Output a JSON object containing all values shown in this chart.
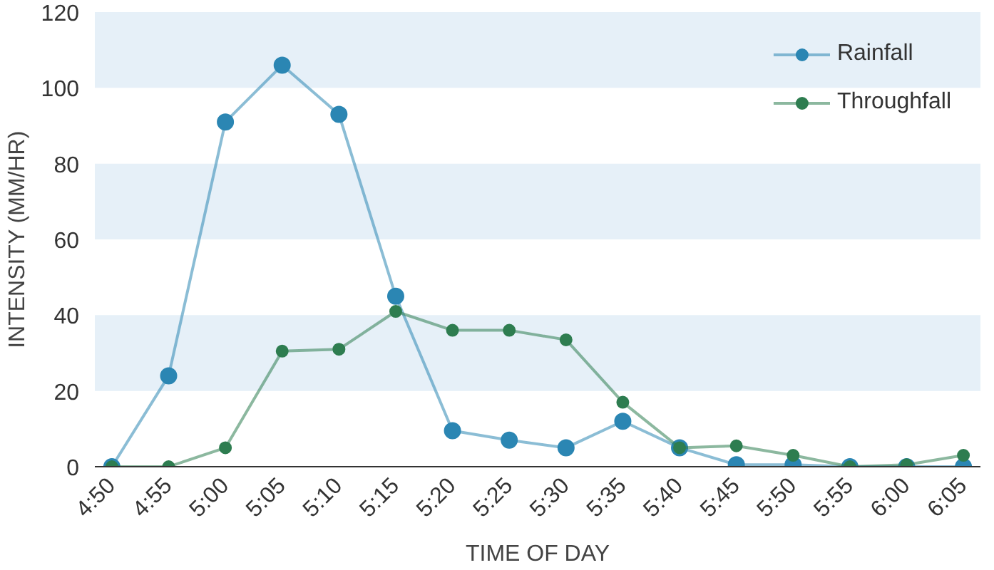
{
  "chart_data": {
    "type": "line",
    "xlabel": "TIME OF DAY",
    "ylabel": "INTENSITY (MM/HR)",
    "categories": [
      "4:50",
      "4:55",
      "5:00",
      "5:05",
      "5:10",
      "5:15",
      "5:20",
      "5:25",
      "5:30",
      "5:35",
      "5:40",
      "5:45",
      "5:50",
      "5:55",
      "6:00",
      "6:05"
    ],
    "series": [
      {
        "name": "Rainfall",
        "color": "#2b86b3",
        "values": [
          0,
          24,
          91,
          106,
          93,
          45,
          9.5,
          7,
          5,
          12,
          5,
          0.5,
          0.5,
          0,
          0,
          0
        ]
      },
      {
        "name": "Throughfall",
        "color": "#2e7d50",
        "values": [
          0,
          0,
          5,
          30.5,
          31,
          41,
          36,
          36,
          33.5,
          17,
          5,
          5.5,
          3,
          0,
          0.5,
          3
        ]
      }
    ],
    "ylim": [
      0,
      120
    ],
    "yticks": [
      0,
      20,
      40,
      60,
      80,
      100,
      120
    ],
    "bands": [
      {
        "axis": "y",
        "from": 20,
        "to": 40,
        "color": "#e6f0f8"
      },
      {
        "axis": "y",
        "from": 60,
        "to": 80,
        "color": "#e6f0f8"
      },
      {
        "axis": "y",
        "from": 100,
        "to": 120,
        "color": "#e6f0f8"
      }
    ],
    "legend": "top right",
    "marker": "circle",
    "line_style": "solid"
  }
}
